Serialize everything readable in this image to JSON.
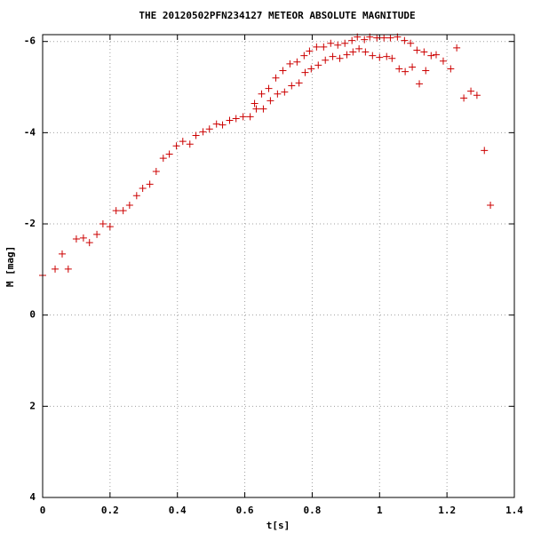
{
  "chart_data": {
    "type": "scatter",
    "title": "THE 20120502PFN234127 METEOR ABSOLUTE MAGNITUDE",
    "x_label": "t[s]",
    "y_label": "M [mag]",
    "xlim": [
      0,
      1.4
    ],
    "ylim": [
      4,
      -6.15
    ],
    "xticks": [
      0,
      0.2,
      0.4,
      0.6,
      0.8,
      1,
      1.2,
      1.4
    ],
    "yticks": [
      -6,
      -4,
      -2,
      0,
      2,
      4
    ],
    "grid": true,
    "series": [
      {
        "color": "#cc0000",
        "x": [
          0,
          0.037,
          0.058,
          0.076,
          0.1,
          0.121,
          0.139,
          0.161,
          0.179,
          0.2,
          0.218,
          0.239,
          0.258,
          0.279,
          0.297,
          0.318,
          0.337,
          0.358,
          0.376,
          0.397,
          0.416,
          0.437,
          0.455,
          0.476,
          0.495,
          0.516,
          0.534,
          0.555,
          0.574,
          0.595,
          0.616,
          0.629,
          0.634,
          0.655,
          0.65,
          0.671,
          0.676,
          0.692,
          0.697,
          0.713,
          0.718,
          0.734,
          0.739,
          0.755,
          0.761,
          0.776,
          0.779,
          0.792,
          0.797,
          0.813,
          0.818,
          0.834,
          0.839,
          0.855,
          0.861,
          0.876,
          0.882,
          0.897,
          0.903,
          0.918,
          0.921,
          0.934,
          0.939,
          0.955,
          0.958,
          0.971,
          0.979,
          0.992,
          1.0,
          1.013,
          1.021,
          1.032,
          1.037,
          1.053,
          1.058,
          1.074,
          1.076,
          1.092,
          1.097,
          1.111,
          1.118,
          1.132,
          1.137,
          1.153,
          1.168,
          1.189,
          1.211,
          1.229,
          1.25,
          1.271,
          1.289,
          1.311,
          1.329
        ],
        "values": [
          -0.87,
          -1.01,
          -1.34,
          -1.01,
          -1.67,
          -1.69,
          -1.59,
          -1.77,
          -2.0,
          -1.94,
          -2.29,
          -2.29,
          -2.41,
          -2.62,
          -2.78,
          -2.87,
          -3.15,
          -3.44,
          -3.53,
          -3.71,
          -3.81,
          -3.75,
          -3.94,
          -4.02,
          -4.08,
          -4.19,
          -4.17,
          -4.27,
          -4.31,
          -4.35,
          -4.35,
          -4.64,
          -4.52,
          -4.52,
          -4.85,
          -4.97,
          -4.7,
          -5.2,
          -4.85,
          -5.36,
          -4.89,
          -5.51,
          -5.03,
          -5.55,
          -5.09,
          -5.69,
          -5.32,
          -5.79,
          -5.4,
          -5.88,
          -5.48,
          -5.88,
          -5.59,
          -5.96,
          -5.67,
          -5.92,
          -5.63,
          -5.96,
          -5.71,
          -6.02,
          -5.77,
          -6.1,
          -5.84,
          -6.04,
          -5.77,
          -6.1,
          -5.69,
          -6.08,
          -5.65,
          -6.08,
          -5.67,
          -6.08,
          -5.63,
          -6.1,
          -5.4,
          -6.02,
          -5.34,
          -5.96,
          -5.44,
          -5.81,
          -5.07,
          -5.77,
          -5.36,
          -5.69,
          -5.71,
          -5.57,
          -5.4,
          -5.86,
          -4.76,
          -4.91,
          -4.82,
          -3.61,
          -2.41
        ]
      }
    ]
  }
}
